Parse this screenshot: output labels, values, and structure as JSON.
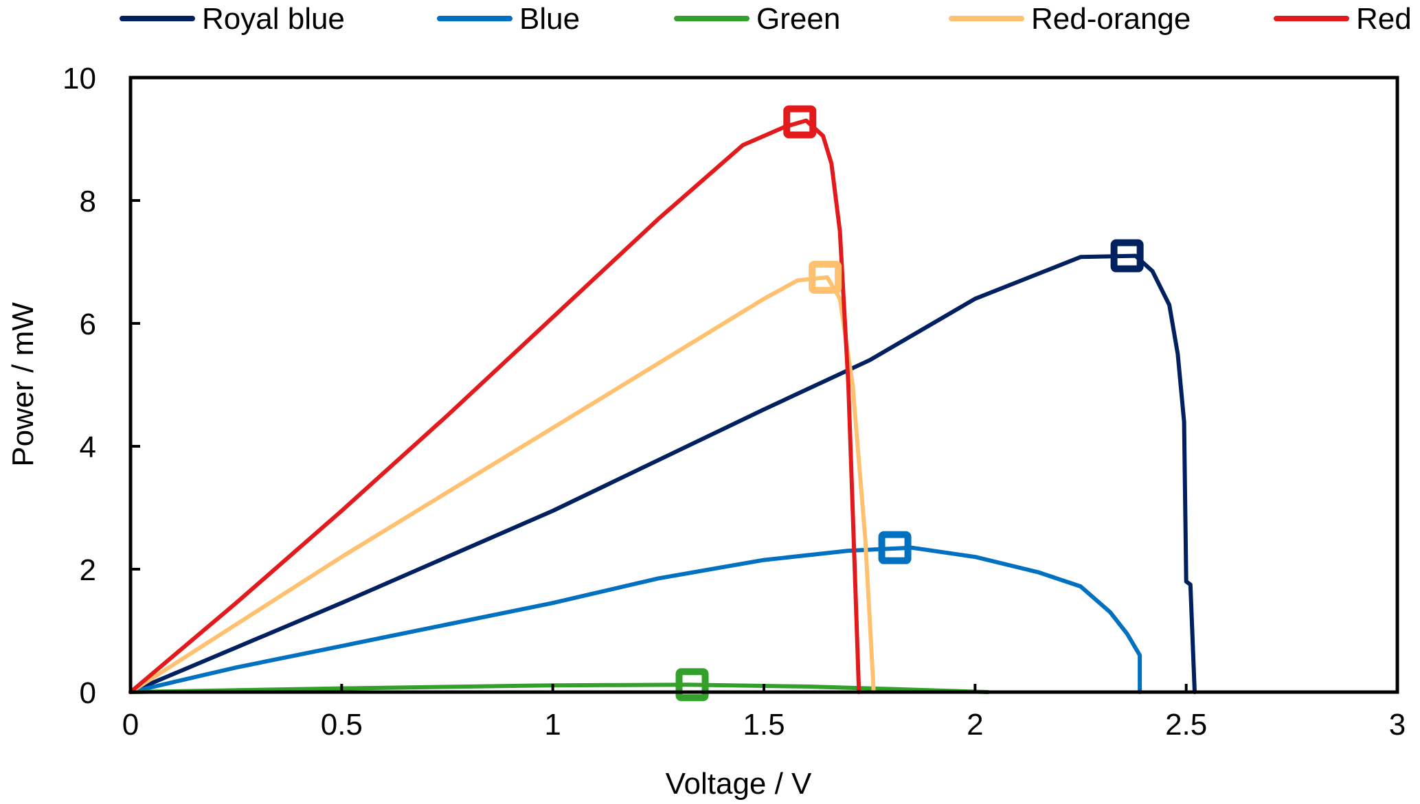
{
  "chart_data": {
    "type": "line",
    "title": "",
    "xlabel": "Voltage / V",
    "ylabel": "Power / mW",
    "xlim": [
      0,
      3
    ],
    "ylim": [
      0,
      10
    ],
    "x_ticks": [
      0,
      0.5,
      1,
      1.5,
      2,
      2.5,
      3
    ],
    "x_tick_labels": [
      "0",
      "0.5",
      "1",
      "1.5",
      "2",
      "2.5",
      "3"
    ],
    "y_ticks": [
      0,
      2,
      4,
      6,
      8,
      10
    ],
    "y_tick_labels": [
      "0",
      "2",
      "4",
      "6",
      "8",
      "10"
    ],
    "grid": false,
    "legend_position": "top",
    "series": [
      {
        "name": "Royal blue",
        "color": "#002060",
        "x": [
          0,
          0.5,
          1.0,
          1.5,
          1.75,
          2.0,
          2.25,
          2.38,
          2.42,
          2.46,
          2.48,
          2.495,
          2.5,
          2.51,
          2.52
        ],
        "y": [
          0,
          1.45,
          2.95,
          4.6,
          5.4,
          6.4,
          7.08,
          7.1,
          6.85,
          6.3,
          5.5,
          4.4,
          1.8,
          1.75,
          0
        ],
        "max_power_point": [
          2.36,
          7.1
        ]
      },
      {
        "name": "Blue",
        "color": "#0070C0",
        "x": [
          0,
          0.25,
          0.5,
          0.75,
          1.0,
          1.25,
          1.5,
          1.7,
          1.85,
          2.0,
          2.15,
          2.25,
          2.32,
          2.36,
          2.39,
          2.39
        ],
        "y": [
          0,
          0.4,
          0.75,
          1.1,
          1.45,
          1.85,
          2.15,
          2.3,
          2.35,
          2.2,
          1.95,
          1.72,
          1.3,
          0.95,
          0.6,
          0
        ],
        "max_power_point": [
          1.81,
          2.35
        ]
      },
      {
        "name": "Green",
        "color": "#33A02C",
        "x": [
          0,
          0.5,
          1.0,
          1.32,
          1.6,
          1.8,
          2.03
        ],
        "y": [
          0,
          0.06,
          0.11,
          0.12,
          0.09,
          0.05,
          0
        ],
        "max_power_point": [
          1.33,
          0.12
        ]
      },
      {
        "name": "Red-orange",
        "color": "#FFC170",
        "x": [
          0,
          0.25,
          0.5,
          0.75,
          1.0,
          1.25,
          1.5,
          1.58,
          1.65,
          1.68,
          1.71,
          1.74,
          1.76
        ],
        "y": [
          0,
          1.1,
          2.2,
          3.25,
          4.3,
          5.35,
          6.4,
          6.7,
          6.75,
          6.4,
          5.0,
          2.5,
          0
        ],
        "max_power_point": [
          1.645,
          6.75
        ]
      },
      {
        "name": "Red",
        "color": "#E31A1C",
        "x": [
          0,
          0.25,
          0.5,
          0.75,
          1.0,
          1.25,
          1.45,
          1.55,
          1.6,
          1.64,
          1.66,
          1.68,
          1.7,
          1.715,
          1.725
        ],
        "y": [
          0,
          1.45,
          2.95,
          4.5,
          6.1,
          7.7,
          8.9,
          9.2,
          9.3,
          9.05,
          8.6,
          7.5,
          5.0,
          2.0,
          0
        ],
        "max_power_point": [
          1.585,
          9.28
        ]
      }
    ]
  }
}
